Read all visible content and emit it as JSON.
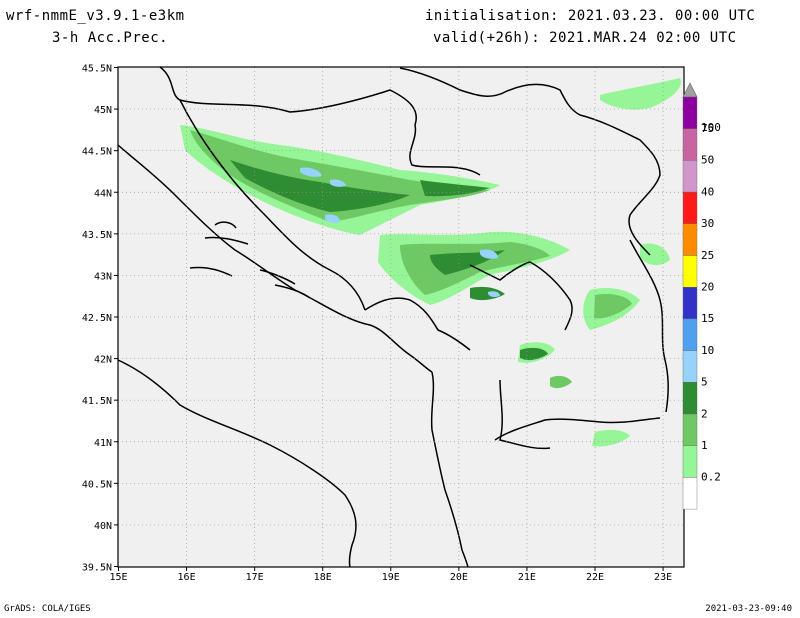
{
  "header": {
    "model": "wrf-nmmE_v3.9.1-e3km",
    "field": "3-h Acc.Prec.",
    "init": "initialisation: 2021.03.23.  00:00 UTC",
    "valid": "valid(+26h): 2021.MAR.24 02:00 UTC"
  },
  "footer": {
    "left": "GrADS: COLA/IGES",
    "right": "2021-03-23-09:40"
  },
  "map": {
    "lon_ticks": [
      "15E",
      "16E",
      "17E",
      "18E",
      "19E",
      "20E",
      "21E",
      "22E",
      "23E"
    ],
    "lat_ticks": [
      "45.5N",
      "45N",
      "44.5N",
      "44N",
      "43.5N",
      "43N",
      "42.5N",
      "42N",
      "41.5N",
      "41N",
      "40.5N",
      "40N",
      "39.5N"
    ],
    "ocean_color": "#f0f0f0",
    "border_color": "#000000",
    "grid": "dotted"
  },
  "colorbar": {
    "labels": [
      "100",
      "75",
      "50",
      "40",
      "30",
      "25",
      "20",
      "15",
      "10",
      "5",
      "2",
      "1",
      "0.2"
    ],
    "colors": [
      "#a0a0a0",
      "#8c00a0",
      "#c864a0",
      "#d296cd",
      "#ff1a1a",
      "#ff8c00",
      "#ffff00",
      "#3232c8",
      "#50a0f0",
      "#96d2fa",
      "#2e8c32",
      "#6ec864",
      "#96f596",
      "#ffffff"
    ]
  }
}
